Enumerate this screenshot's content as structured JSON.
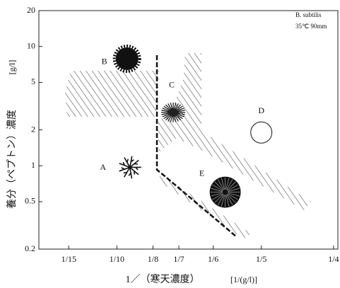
{
  "chart_data": {
    "type": "scatter",
    "annotations": [
      "B. subtilis",
      "35℃ 90mm"
    ],
    "xlabel": "1／（寒天濃度）",
    "xunit": "[1/(g/l)]",
    "ylabel": "養分（ペプトン）濃度",
    "yunit": "[g/l]",
    "log_y": true,
    "points": [
      {
        "label": "A",
        "x": 0.109,
        "y": 0.97
      },
      {
        "label": "B",
        "x": 0.107,
        "y": 7.9
      },
      {
        "label": "C",
        "x": 0.139,
        "y": 2.8
      },
      {
        "label": "D",
        "x": 0.2,
        "y": 1.9
      },
      {
        "label": "E",
        "x": 0.175,
        "y": 0.6
      }
    ],
    "xlim": [
      0.046,
      0.253
    ],
    "xticks": [
      {
        "value": 0.0667,
        "label": "1/15"
      },
      {
        "value": 0.1,
        "label": "1/10"
      },
      {
        "value": 0.125,
        "label": "1/8"
      },
      {
        "value": 0.1429,
        "label": "1/7"
      },
      {
        "value": 0.1667,
        "label": "1/6"
      },
      {
        "value": 0.2,
        "label": "1/5"
      },
      {
        "value": 0.25,
        "label": "1/4"
      }
    ],
    "ylim": [
      0.2,
      20
    ],
    "yticks": [
      0.2,
      0.5,
      1,
      2,
      5,
      10,
      20
    ]
  }
}
